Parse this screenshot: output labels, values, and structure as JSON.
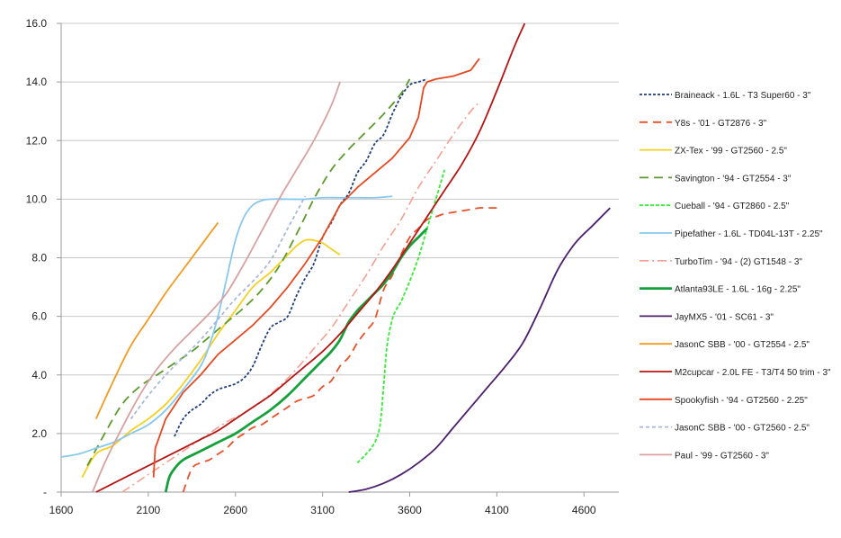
{
  "chart_data": {
    "type": "line",
    "title": "",
    "xlabel": "",
    "ylabel": "",
    "xlim": [
      1600,
      4800
    ],
    "ylim": [
      0,
      16
    ],
    "x_ticks": [
      1600,
      2100,
      2600,
      3100,
      3600,
      4100,
      4600
    ],
    "x_tick_labels": [
      "1600",
      "2100",
      "2600",
      "3100",
      "3600",
      "4100",
      "4600"
    ],
    "y_ticks": [
      0,
      2,
      4,
      6,
      8,
      10,
      12,
      14,
      16
    ],
    "y_tick_labels": [
      "-",
      "2.0",
      "4.0",
      "6.0",
      "8.0",
      "10.0",
      "12.0",
      "14.0",
      "16.0"
    ],
    "grid": "horizontal",
    "legend_position": "right",
    "series": [
      {
        "name": "Braineack - 1.6L - T3 Super60 - 3\"",
        "color": "#1f3f7a",
        "dash": "3,2",
        "width": 1.8,
        "x": [
          2250,
          2300,
          2350,
          2400,
          2450,
          2500,
          2550,
          2600,
          2650,
          2700,
          2750,
          2800,
          2850,
          2900,
          2950,
          3000,
          3050,
          3100,
          3150,
          3200,
          3250,
          3300,
          3350,
          3400,
          3450,
          3500,
          3550,
          3600,
          3650,
          3700
        ],
        "y": [
          1.9,
          2.5,
          2.8,
          3.0,
          3.3,
          3.5,
          3.6,
          3.7,
          3.9,
          4.3,
          5.0,
          5.6,
          5.8,
          6.0,
          6.7,
          7.3,
          7.8,
          8.7,
          9.2,
          9.8,
          10.2,
          10.9,
          11.3,
          11.9,
          12.2,
          12.9,
          13.5,
          13.9,
          14.0,
          14.1
        ],
        "smooth": true
      },
      {
        "name": "Y8s - '01 - GT2876 - 3\"",
        "color": "#e8502a",
        "dash": "9,6",
        "width": 1.8,
        "x": [
          2300,
          2350,
          2400,
          2450,
          2500,
          2550,
          2600,
          2650,
          2700,
          2750,
          2800,
          2850,
          2900,
          2950,
          3000,
          3050,
          3100,
          3150,
          3200,
          3250,
          3300,
          3350,
          3400,
          3450,
          3500,
          3550,
          3600,
          3650,
          3700,
          3750,
          3800,
          3850,
          3900,
          3950,
          4000,
          4050,
          4100
        ],
        "y": [
          0.0,
          0.8,
          1.0,
          1.1,
          1.3,
          1.5,
          1.8,
          2.0,
          2.2,
          2.3,
          2.5,
          2.7,
          2.9,
          3.1,
          3.2,
          3.3,
          3.6,
          3.8,
          4.3,
          4.6,
          5.1,
          5.5,
          5.9,
          6.9,
          7.4,
          8.1,
          8.7,
          9.0,
          9.3,
          9.4,
          9.5,
          9.55,
          9.6,
          9.65,
          9.7,
          9.7,
          9.7
        ],
        "smooth": true
      },
      {
        "name": "ZX-Tex - '99 - GT2560 - 2.5\"",
        "color": "#f5d020",
        "dash": "",
        "width": 1.8,
        "x": [
          1720,
          1800,
          1900,
          2000,
          2100,
          2200,
          2300,
          2400,
          2500,
          2600,
          2700,
          2800,
          2900,
          2950,
          3000,
          3050,
          3100,
          3150,
          3200
        ],
        "y": [
          0.5,
          1.3,
          1.6,
          2.1,
          2.5,
          3.0,
          3.7,
          4.5,
          5.4,
          6.2,
          7.0,
          7.5,
          8.1,
          8.4,
          8.6,
          8.6,
          8.5,
          8.3,
          8.1
        ],
        "smooth": true
      },
      {
        "name": "Savington - '94 - GT2554 - 3\"",
        "color": "#5a9a2a",
        "dash": "10,6",
        "width": 1.8,
        "x": [
          1750,
          1850,
          1950,
          2050,
          2150,
          2250,
          2350,
          2450,
          2550,
          2650,
          2750,
          2850,
          2950,
          3050,
          3150,
          3250,
          3350,
          3450,
          3550,
          3600
        ],
        "y": [
          0.9,
          2.0,
          3.0,
          3.6,
          4.0,
          4.4,
          4.8,
          5.3,
          5.8,
          6.3,
          6.9,
          7.7,
          8.8,
          10.0,
          11.0,
          11.7,
          12.3,
          12.9,
          13.6,
          14.1
        ],
        "smooth": true
      },
      {
        "name": "Cueball - '94 - GT2860 - 2.5\"",
        "color": "#33ee33",
        "dash": "4,2",
        "width": 1.8,
        "x": [
          3300,
          3350,
          3400,
          3430,
          3450,
          3470,
          3500,
          3520,
          3550,
          3600,
          3650,
          3700,
          3750,
          3800
        ],
        "y": [
          1.0,
          1.3,
          1.7,
          2.3,
          3.6,
          5.0,
          5.9,
          6.2,
          6.5,
          7.2,
          8.0,
          9.0,
          10.0,
          11.0
        ],
        "smooth": true
      },
      {
        "name": "Pipefather - 1.6L - TD04L-13T - 2.25\"",
        "color": "#88c8ee",
        "dash": "",
        "width": 1.8,
        "x": [
          1600,
          1700,
          1800,
          1900,
          2000,
          2100,
          2200,
          2300,
          2400,
          2450,
          2500,
          2550,
          2600,
          2650,
          2700,
          2750,
          2800,
          2900,
          3000,
          3100,
          3200,
          3300,
          3400,
          3500
        ],
        "y": [
          1.2,
          1.3,
          1.5,
          1.7,
          2.0,
          2.3,
          2.8,
          3.5,
          4.3,
          5.0,
          6.0,
          7.3,
          8.6,
          9.4,
          9.8,
          9.95,
          10.0,
          10.0,
          10.0,
          10.05,
          10.05,
          10.05,
          10.05,
          10.1
        ],
        "smooth": true
      },
      {
        "name": "TurboTim - '94 - (2) GT1548 - 3\"",
        "color": "#f4a090",
        "dash": "10,4,2,4",
        "width": 1.6,
        "x": [
          1950,
          2050,
          2150,
          2250,
          2350,
          2450,
          2550,
          2650,
          2750,
          2850,
          2950,
          3050,
          3150,
          3250,
          3350,
          3450,
          3550,
          3650,
          3750,
          3850,
          3950,
          4000
        ],
        "y": [
          0.0,
          0.4,
          0.8,
          1.2,
          1.6,
          2.0,
          2.4,
          2.7,
          3.1,
          3.6,
          4.2,
          4.9,
          5.6,
          6.5,
          7.4,
          8.4,
          9.3,
          10.4,
          11.3,
          12.2,
          13.0,
          13.3
        ],
        "smooth": true
      },
      {
        "name": "Atlanta93LE - 1.6L - 16g - 2.25\"",
        "color": "#14a03a",
        "dash": "",
        "width": 2.8,
        "x": [
          2200,
          2220,
          2250,
          2300,
          2400,
          2500,
          2600,
          2700,
          2800,
          2900,
          3000,
          3050,
          3100,
          3150,
          3200,
          3250,
          3300,
          3350,
          3400,
          3450,
          3500,
          3550,
          3600,
          3650,
          3700
        ],
        "y": [
          0.0,
          0.5,
          0.8,
          1.1,
          1.4,
          1.7,
          2.0,
          2.4,
          2.8,
          3.3,
          3.9,
          4.2,
          4.5,
          4.8,
          5.2,
          5.8,
          6.2,
          6.5,
          6.8,
          7.1,
          7.5,
          8.0,
          8.4,
          8.7,
          9.0
        ],
        "smooth": true
      },
      {
        "name": "JayMX5 - '01 - SC61 - 3\"",
        "color": "#4c1e6e",
        "dash": "",
        "width": 1.8,
        "x": [
          3250,
          3350,
          3450,
          3550,
          3650,
          3750,
          3850,
          3950,
          4050,
          4150,
          4250,
          4350,
          4450,
          4550,
          4650,
          4750
        ],
        "y": [
          0.0,
          0.1,
          0.3,
          0.6,
          1.0,
          1.5,
          2.2,
          2.9,
          3.6,
          4.3,
          5.1,
          6.3,
          7.6,
          8.5,
          9.1,
          9.7
        ],
        "smooth": true
      },
      {
        "name": "JasonC SBB - '00 - GT2554 - 2.5\"",
        "color": "#f39a1e",
        "dash": "",
        "width": 1.8,
        "x": [
          1800,
          1900,
          2000,
          2100,
          2200,
          2300,
          2400,
          2500
        ],
        "y": [
          2.5,
          3.8,
          5.0,
          5.9,
          6.8,
          7.6,
          8.4,
          9.2
        ],
        "smooth": true
      },
      {
        "name": "M2cupcar - 2.0L FE - T3/T4 50 trim - 3\"",
        "color": "#b81414",
        "dash": "",
        "width": 1.8,
        "x": [
          1800,
          1900,
          2000,
          2100,
          2200,
          2300,
          2400,
          2500,
          2600,
          2700,
          2800,
          2900,
          3000,
          3100,
          3200,
          3300,
          3400,
          3500,
          3600,
          3700,
          3800,
          3900,
          4000,
          4100,
          4200,
          4260
        ],
        "y": [
          0.0,
          0.3,
          0.6,
          0.9,
          1.2,
          1.5,
          1.8,
          2.1,
          2.5,
          2.9,
          3.3,
          3.8,
          4.3,
          4.8,
          5.4,
          6.1,
          6.8,
          7.6,
          8.5,
          9.4,
          10.3,
          11.2,
          12.3,
          13.7,
          15.2,
          16.0
        ],
        "smooth": true
      },
      {
        "name": "Spookyfish - '94 - GT2560 - 2.25\"",
        "color": "#e84820",
        "dash": "",
        "width": 1.8,
        "x": [
          2130,
          2140,
          2200,
          2300,
          2400,
          2500,
          2600,
          2700,
          2800,
          2900,
          3000,
          3100,
          3200,
          3300,
          3400,
          3500,
          3600,
          3650,
          3680,
          3700,
          3750,
          3850,
          3950,
          4000
        ],
        "y": [
          0.5,
          1.5,
          2.5,
          3.4,
          4.0,
          4.7,
          5.2,
          5.7,
          6.3,
          7.0,
          7.8,
          8.7,
          9.8,
          10.4,
          10.9,
          11.4,
          12.1,
          12.8,
          13.8,
          14.0,
          14.1,
          14.2,
          14.4,
          14.8
        ],
        "smooth": false
      },
      {
        "name": "JasonC SBB - '00 - GT2560 - 2.5\"",
        "color": "#a8b8d8",
        "dash": "4,3",
        "width": 1.8,
        "x": [
          2000,
          2100,
          2200,
          2300,
          2400,
          2500,
          2600,
          2700,
          2800,
          2900,
          3000
        ],
        "y": [
          2.5,
          3.3,
          4.0,
          4.6,
          5.2,
          5.9,
          6.6,
          7.2,
          7.9,
          9.0,
          10.1
        ],
        "smooth": true
      },
      {
        "name": "Paul - '99 - GT2560 - 3\"",
        "color": "#d8a0a0",
        "dash": "",
        "width": 1.8,
        "x": [
          1780,
          1850,
          1950,
          2050,
          2150,
          2250,
          2350,
          2450,
          2550,
          2650,
          2750,
          2850,
          2950,
          3050,
          3150,
          3200
        ],
        "y": [
          0.0,
          1.0,
          2.2,
          3.3,
          4.2,
          4.9,
          5.5,
          6.1,
          6.8,
          7.8,
          8.9,
          10.0,
          11.0,
          12.0,
          13.2,
          14.0
        ],
        "smooth": true
      }
    ]
  }
}
